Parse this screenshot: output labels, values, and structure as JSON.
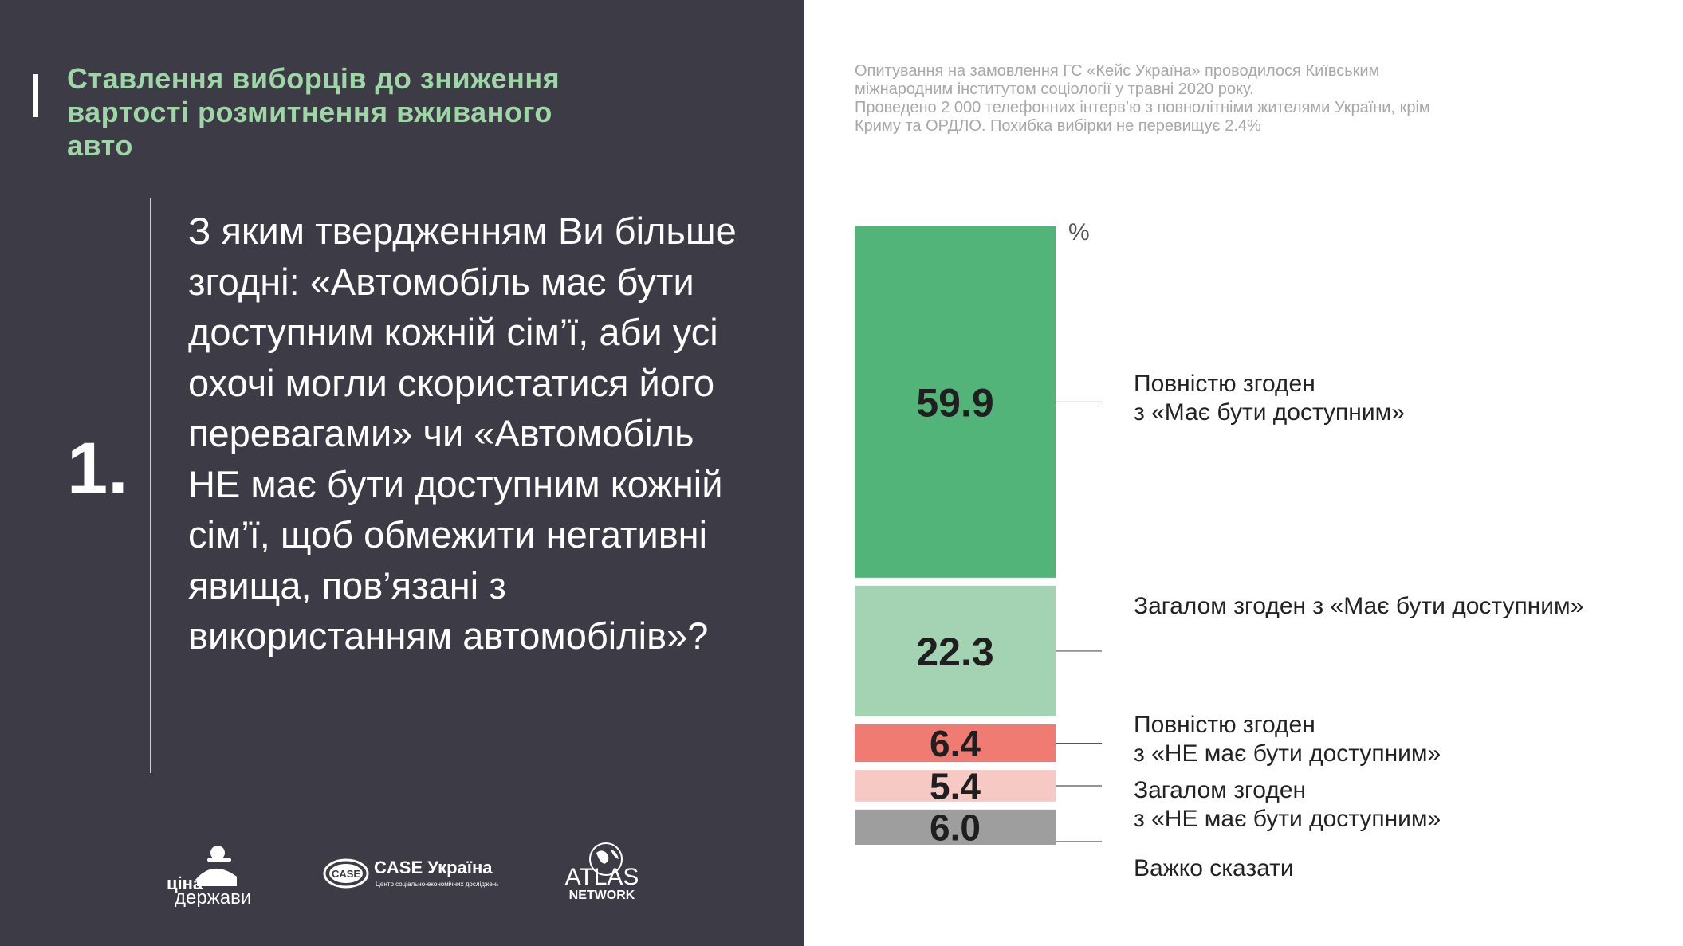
{
  "header": {
    "title": "Ставлення виборців до зниження вартості розмитнення вживаного авто"
  },
  "question": {
    "number": "1.",
    "text": "З яким твердженням Ви більше згодні: «Автомобіль має бути доступним кожній сім’ї, аби усі охочі могли скористатися його перевагами» чи «Автомобіль НЕ має бути доступним кожній сім’ї, щоб обмежити негативні явища, пов’язані з використанням автомобілів»?"
  },
  "survey_note": {
    "line1": "Опитування на замовлення ГС «Кейс Україна» проводилося Київським",
    "line2": "міжнародним інститутом соціології у травні 2020 року.",
    "line3": "Проведено 2 000 телефонних інтерв’ю з повнолітніми жителями України, крім",
    "line4": "Криму та ОРДЛО. Похибка вибірки не перевищує 2.4%"
  },
  "logos": {
    "tsina_line1": "ціна",
    "tsina_line2": "держави",
    "case_badge": "CASE",
    "case_name": "CASE Україна",
    "case_subtitle": "Центр соціально-економічних досліджень",
    "atlas_line1": "ATLAS",
    "atlas_line2": "NETWORK"
  },
  "chart_data": {
    "type": "bar",
    "stacked": true,
    "orientation": "vertical",
    "unit": "%",
    "categories": [
      "Повністю згоден з «Має бути доступним»",
      "Загалом згоден з «Має бути доступним»",
      "Повністю згоден з «НЕ має бути доступним»",
      "Загалом згоден з «НЕ має бути доступним»",
      "Важко сказати"
    ],
    "values": [
      59.9,
      22.3,
      6.4,
      5.4,
      6.0
    ],
    "value_labels": [
      "59.9",
      "22.3",
      "6.4",
      "5.4",
      "6.0"
    ],
    "colors": [
      "#53b47a",
      "#a3d3b2",
      "#ef7b72",
      "#f6c9c5",
      "#9e9e9e"
    ],
    "label_lines": [
      [
        "Повністю згоден",
        "з «Має бути доступним»"
      ],
      [
        "Загалом згоден з «Має бути доступним»"
      ],
      [
        "Повністю згоден",
        "з «НЕ має бути доступним»"
      ],
      [
        "Загалом згоден",
        "з «НЕ має бути доступним»"
      ],
      [
        "Важко сказати"
      ]
    ],
    "legend": "right"
  }
}
